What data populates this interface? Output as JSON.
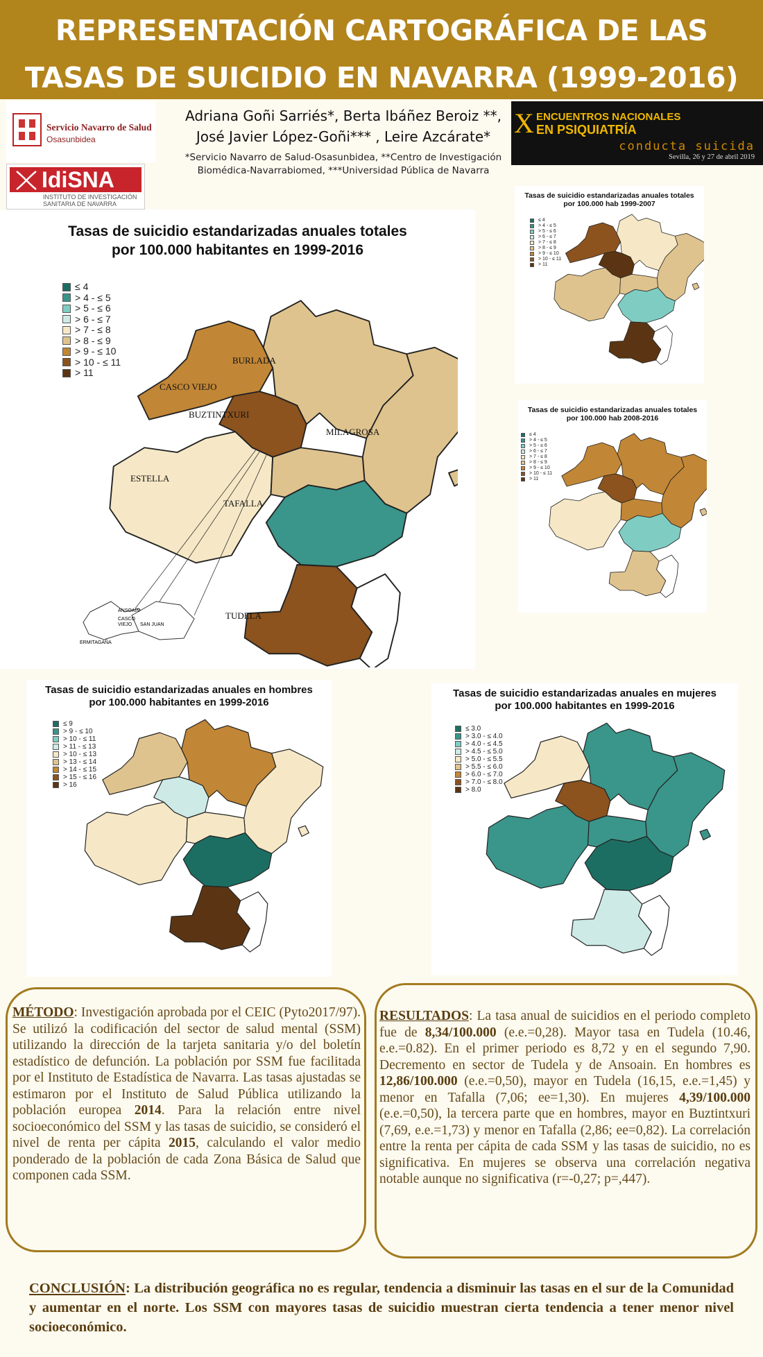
{
  "title_line1": "REPRESENTACIÓN CARTOGRÁFICA DE LAS",
  "title_line2": "TASAS DE SUICIDIO EN NAVARRA (1999-2016)",
  "logos": {
    "sns_line1": "Servicio Navarro de Salud",
    "sns_line2": "Osasunbidea",
    "idisna": "IdiSNA",
    "idisna_sub1": "INSTITUTO DE INVESTIGACIÓN",
    "idisna_sub2": "SANITARIA DE NAVARRA"
  },
  "authors": {
    "line1": "Adriana Goñi Sarriés*, Berta Ibáñez Beroiz **,",
    "line2": "José Javier López-Goñi*** , Leire Azcárate*",
    "aff1": "*Servicio Navarro de Salud-Osasunbidea, **Centro de Investigación",
    "aff2": "Biomédica-Navarrabiomed,  ***Universidad Pública de Navarra"
  },
  "congress": {
    "numeral": "X",
    "line1": "ENCUENTROS NACIONALES",
    "line2": "EN PSIQUIATRÍA",
    "line3": "conducta suicida",
    "line4": "Sevilla, 26 y 27 de abril 2019"
  },
  "maps": {
    "main": {
      "title1": "Tasas de suicidio estandarizadas anuales totales",
      "title2": "por 100.000 habitantes en 1999-2016",
      "legend": [
        "≤ 4",
        "> 4 -  ≤ 5",
        "> 5 -  ≤ 6",
        "> 6 -  ≤ 7",
        "> 7 -  ≤ 8",
        "> 8 -  ≤ 9",
        "> 9 -  ≤ 10",
        "> 10 -  ≤ 11",
        "> 11"
      ],
      "regions": {
        "burlada": "BURLADA",
        "casco": "CASCO VIEJO",
        "buztintxuri": "BUZTINTXURI",
        "milagrosa": "MILAGROSA",
        "estella": "ESTELLA",
        "tafalla": "TAFALLA",
        "tudela": "TUDELA"
      },
      "inset": [
        "ANSOAIN",
        "CASCO",
        "VIEJO",
        "SAN JUAN",
        "ERMITAGAÑA"
      ]
    },
    "p1": {
      "title1": "Tasas de suicidio estandarizadas anuales totales",
      "title2": "por 100.000 hab 1999-2007",
      "legend": [
        "≤ 4",
        "> 4 - ≤ 5",
        "> 5 - ≤ 6",
        "> 6 - ≤ 7",
        "> 7 - ≤ 8",
        "> 8 - ≤ 9",
        "> 9 - ≤ 10",
        "> 10 - ≤ 11",
        "> 11"
      ]
    },
    "p2": {
      "title1": "Tasas de suicidio estandarizadas anuales totales",
      "title2": "por 100.000 hab 2008-2016",
      "legend": [
        "≤ 4",
        "> 4 - ≤ 5",
        "> 5 - ≤ 6",
        "> 6 - ≤ 7",
        "> 7 - ≤ 8",
        "> 8 - ≤ 9",
        "> 9 - ≤ 10",
        "> 10 - ≤ 11",
        "> 11"
      ]
    },
    "men": {
      "title1": "Tasas de suicidio estandarizadas anuales en hombres",
      "title2": "por 100.000 habitantes en 1999-2016",
      "legend": [
        "≤ 9",
        "> 9 -  ≤ 10",
        "> 10 -  ≤ 11",
        "> 11 -  ≤ 13",
        "> 10 -  ≤ 13",
        "> 13 -  ≤ 14",
        "> 14 -  ≤ 15",
        "> 15 -  ≤ 16",
        "> 16"
      ]
    },
    "women": {
      "title1": "Tasas de suicidio estandarizadas anuales en mujeres",
      "title2": "por 100.000 habitantes en 1999-2016",
      "legend": [
        "≤ 3.0",
        "> 3.0 -  ≤ 4.0",
        "> 4.0 -  ≤ 4.5",
        "> 4.5 -  ≤ 5.0",
        "> 5.0 -  ≤ 5.5",
        "> 5.5 -  ≤ 6.0",
        "> 6.0 -  ≤ 7.0",
        "> 7.0 -  ≤ 8.0",
        "> 8.0"
      ]
    }
  },
  "colors": [
    "#1d6e62",
    "#3a958a",
    "#7fcdc2",
    "#cdeae6",
    "#f6e8c6",
    "#dfc38e",
    "#c18636",
    "#8c531f",
    "#5b3513"
  ],
  "metodo": {
    "heading": "MÉTODO",
    "text_a": ": Investigación aprobada por el CEIC (Pyto2017/97). Se utilizó la codificación del sector de salud mental (SSM) utilizando la dirección de la tarjeta sanitaria y/o del boletín estadístico de defunción. La población por SSM fue facilitada por el Instituto de Estadística de Navarra. Las tasas ajustadas se estimaron por el Instituto de Salud Pública utilizando la población europea ",
    "b1": "2014",
    "text_b": ". Para la relación entre nivel socioeconómico del SSM y las tasas de suicidio, se consideró el nivel de renta per cápita ",
    "b2": "2015",
    "text_c": ", calculando el valor medio ponderado de la población de cada Zona Básica de Salud que componen cada SSM."
  },
  "resultados": {
    "heading": "RESULTADOS",
    "s1": ": La tasa anual de suicidios en el periodo completo fue de ",
    "b1": "8,34/100.000",
    "s2": " (e.e.=0,28). Mayor tasa en Tudela (10.46, e.e.=0.82). En el primer periodo es 8,72 y en el segundo 7,90. Decremento en sector de Tudela y de Ansoain. En hombres es ",
    "b2": "12,86/100.000",
    "s3": " (e.e.=0,50), mayor en Tudela (16,15, e.e.=1,45) y menor en Tafalla (7,06; ee=1,30). En mujeres ",
    "b3": "4,39/100.000",
    "s4": " (e.e.=0,50), la tercera parte que en hombres, mayor en Buztintxuri (7,69, e.e.=1,73) y menor en Tafalla (2,86; ee=0,82). La correlación entre la renta per cápita de cada SSM y las tasas de suicidio, no es significativa. En mujeres se observa una correlación negativa notable aunque no significativa (r=-0,27; p=,447)."
  },
  "conclusion": {
    "heading": "CONCLUSIÓN",
    "text": ": La distribución geográfica no es regular, tendencia a disminuir las tasas en el sur de la Comunidad y aumentar en el norte. Los SSM con mayores tasas de suicidio muestran cierta tendencia a tener menor nivel socioeconómico."
  }
}
